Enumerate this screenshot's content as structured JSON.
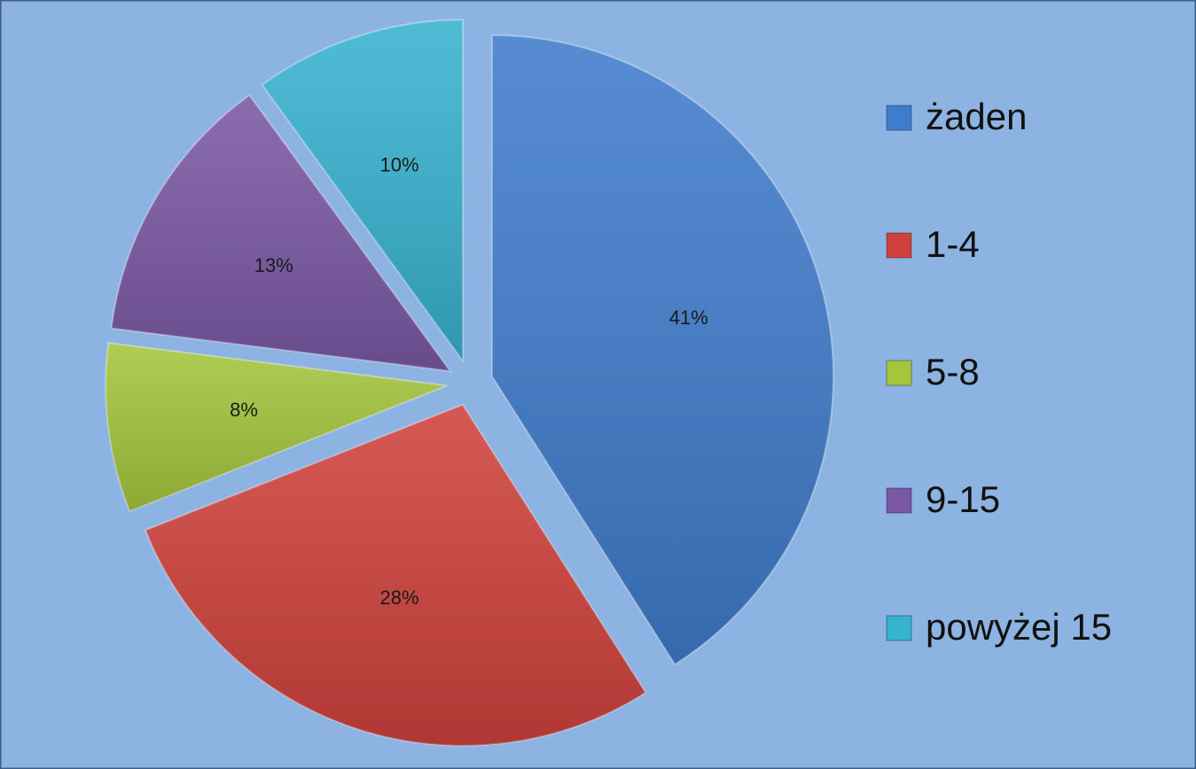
{
  "chart_data": {
    "type": "pie",
    "categories": [
      "żaden",
      "1-4",
      "5-8",
      "9-15",
      "powyżej 15"
    ],
    "values": [
      41,
      28,
      8,
      13,
      10
    ],
    "value_labels": [
      "41%",
      "28%",
      "8%",
      "13%",
      "10%"
    ],
    "colors": [
      "#3f7ccc",
      "#cf413c",
      "#a3c63c",
      "#7a58a4",
      "#37b2cf"
    ],
    "legend": "right"
  }
}
